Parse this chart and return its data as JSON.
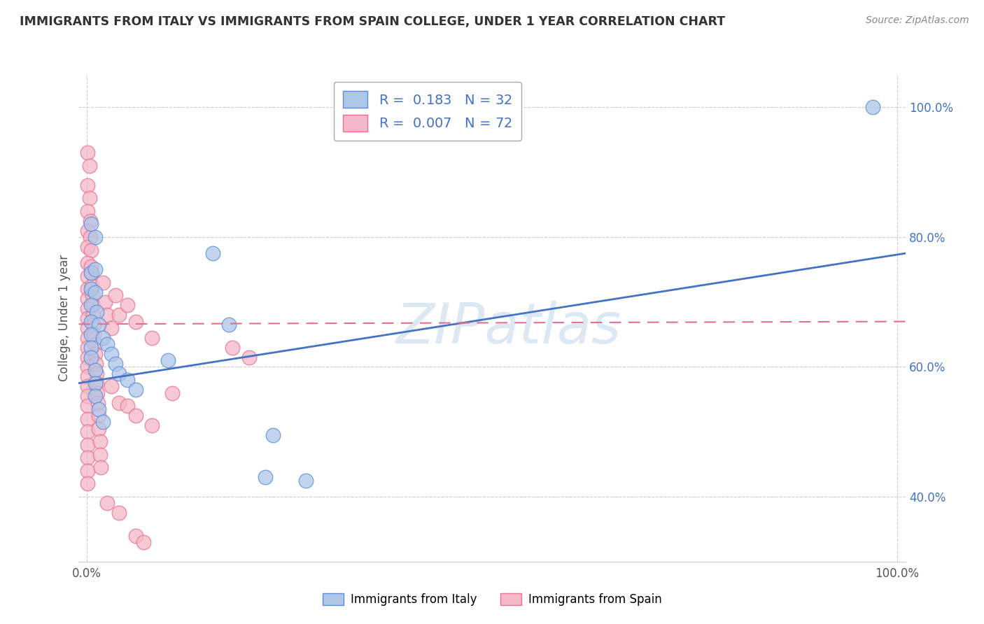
{
  "title": "IMMIGRANTS FROM ITALY VS IMMIGRANTS FROM SPAIN COLLEGE, UNDER 1 YEAR CORRELATION CHART",
  "source": "Source: ZipAtlas.com",
  "ylabel": "College, Under 1 year",
  "italy_R": 0.183,
  "italy_N": 32,
  "spain_R": 0.007,
  "spain_N": 72,
  "italy_color": "#aec6e8",
  "spain_color": "#f4b8c8",
  "italy_edge_color": "#5b8dd9",
  "spain_edge_color": "#e87090",
  "italy_line_color": "#4472c4",
  "spain_line_color": "#e07090",
  "legend_italy_label": "Immigrants from Italy",
  "legend_spain_label": "Immigrants from Spain",
  "watermark_color": "#dde8f5",
  "xlim": [
    -0.01,
    1.01
  ],
  "ylim": [
    0.3,
    1.05
  ],
  "italy_line_y0": 0.575,
  "italy_line_y1": 0.775,
  "spain_line_y0": 0.666,
  "spain_line_y1": 0.67,
  "grid_yticks": [
    0.4,
    0.6,
    0.8,
    1.0
  ],
  "italy_scatter": [
    [
      0.005,
      0.82
    ],
    [
      0.01,
      0.8
    ],
    [
      0.005,
      0.745
    ],
    [
      0.01,
      0.75
    ],
    [
      0.005,
      0.72
    ],
    [
      0.01,
      0.715
    ],
    [
      0.005,
      0.695
    ],
    [
      0.012,
      0.685
    ],
    [
      0.005,
      0.67
    ],
    [
      0.015,
      0.665
    ],
    [
      0.005,
      0.65
    ],
    [
      0.02,
      0.645
    ],
    [
      0.005,
      0.63
    ],
    [
      0.025,
      0.635
    ],
    [
      0.005,
      0.615
    ],
    [
      0.03,
      0.62
    ],
    [
      0.01,
      0.595
    ],
    [
      0.035,
      0.605
    ],
    [
      0.01,
      0.575
    ],
    [
      0.04,
      0.59
    ],
    [
      0.01,
      0.555
    ],
    [
      0.05,
      0.58
    ],
    [
      0.015,
      0.535
    ],
    [
      0.06,
      0.565
    ],
    [
      0.02,
      0.515
    ],
    [
      0.1,
      0.61
    ],
    [
      0.155,
      0.775
    ],
    [
      0.175,
      0.665
    ],
    [
      0.22,
      0.43
    ],
    [
      0.23,
      0.495
    ],
    [
      0.27,
      0.425
    ],
    [
      0.97,
      1.0
    ]
  ],
  "spain_scatter": [
    [
      0.001,
      0.93
    ],
    [
      0.003,
      0.91
    ],
    [
      0.001,
      0.88
    ],
    [
      0.003,
      0.86
    ],
    [
      0.001,
      0.84
    ],
    [
      0.004,
      0.825
    ],
    [
      0.001,
      0.81
    ],
    [
      0.004,
      0.8
    ],
    [
      0.001,
      0.785
    ],
    [
      0.005,
      0.78
    ],
    [
      0.001,
      0.76
    ],
    [
      0.005,
      0.755
    ],
    [
      0.001,
      0.74
    ],
    [
      0.006,
      0.745
    ],
    [
      0.001,
      0.72
    ],
    [
      0.006,
      0.725
    ],
    [
      0.001,
      0.705
    ],
    [
      0.007,
      0.71
    ],
    [
      0.001,
      0.69
    ],
    [
      0.008,
      0.695
    ],
    [
      0.001,
      0.675
    ],
    [
      0.008,
      0.68
    ],
    [
      0.001,
      0.66
    ],
    [
      0.009,
      0.665
    ],
    [
      0.001,
      0.645
    ],
    [
      0.009,
      0.65
    ],
    [
      0.001,
      0.63
    ],
    [
      0.01,
      0.635
    ],
    [
      0.001,
      0.615
    ],
    [
      0.01,
      0.62
    ],
    [
      0.001,
      0.6
    ],
    [
      0.011,
      0.605
    ],
    [
      0.001,
      0.585
    ],
    [
      0.012,
      0.59
    ],
    [
      0.001,
      0.57
    ],
    [
      0.012,
      0.575
    ],
    [
      0.001,
      0.555
    ],
    [
      0.013,
      0.56
    ],
    [
      0.001,
      0.54
    ],
    [
      0.014,
      0.545
    ],
    [
      0.001,
      0.52
    ],
    [
      0.015,
      0.525
    ],
    [
      0.001,
      0.5
    ],
    [
      0.015,
      0.505
    ],
    [
      0.001,
      0.48
    ],
    [
      0.016,
      0.485
    ],
    [
      0.001,
      0.46
    ],
    [
      0.016,
      0.465
    ],
    [
      0.001,
      0.44
    ],
    [
      0.017,
      0.445
    ],
    [
      0.001,
      0.42
    ],
    [
      0.02,
      0.73
    ],
    [
      0.022,
      0.7
    ],
    [
      0.025,
      0.68
    ],
    [
      0.03,
      0.66
    ],
    [
      0.035,
      0.71
    ],
    [
      0.04,
      0.68
    ],
    [
      0.05,
      0.695
    ],
    [
      0.06,
      0.67
    ],
    [
      0.08,
      0.645
    ],
    [
      0.03,
      0.57
    ],
    [
      0.04,
      0.545
    ],
    [
      0.05,
      0.54
    ],
    [
      0.06,
      0.525
    ],
    [
      0.08,
      0.51
    ],
    [
      0.025,
      0.39
    ],
    [
      0.04,
      0.375
    ],
    [
      0.06,
      0.34
    ],
    [
      0.07,
      0.33
    ],
    [
      0.105,
      0.56
    ],
    [
      0.18,
      0.63
    ],
    [
      0.2,
      0.615
    ]
  ]
}
